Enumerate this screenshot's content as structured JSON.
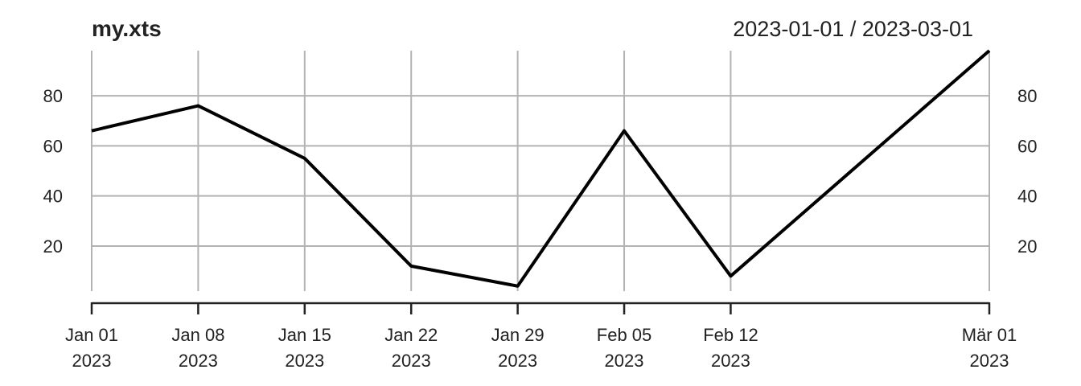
{
  "chart_data": {
    "type": "line",
    "title": "my.xts",
    "date_range_label": "2023-01-01 / 2023-03-01",
    "x": [
      "2023-01-01",
      "2023-01-08",
      "2023-01-15",
      "2023-01-22",
      "2023-01-29",
      "2023-02-05",
      "2023-02-12",
      "2023-03-01"
    ],
    "series": [
      {
        "values": [
          66,
          76,
          55,
          12,
          4,
          66,
          8,
          98
        ]
      }
    ],
    "x_ticks": [
      {
        "date": "2023-01-01",
        "line1": "Jan 01",
        "line2": "2023"
      },
      {
        "date": "2023-01-08",
        "line1": "Jan 08",
        "line2": "2023"
      },
      {
        "date": "2023-01-15",
        "line1": "Jan 15",
        "line2": "2023"
      },
      {
        "date": "2023-01-22",
        "line1": "Jan 22",
        "line2": "2023"
      },
      {
        "date": "2023-01-29",
        "line1": "Jan 29",
        "line2": "2023"
      },
      {
        "date": "2023-02-05",
        "line1": "Feb 05",
        "line2": "2023"
      },
      {
        "date": "2023-02-12",
        "line1": "Feb 12",
        "line2": "2023"
      },
      {
        "date": "2023-03-01",
        "line1": "Mär 01",
        "line2": "2023"
      }
    ],
    "y_ticks": [
      20,
      40,
      60,
      80
    ],
    "ylim": [
      2,
      98
    ],
    "xlim": [
      "2023-01-01",
      "2023-03-01"
    ],
    "grid": true,
    "y_labels_both_sides": true,
    "colors": {
      "line": "#000000",
      "grid": "#b3b3b3",
      "text": "#222222"
    }
  }
}
